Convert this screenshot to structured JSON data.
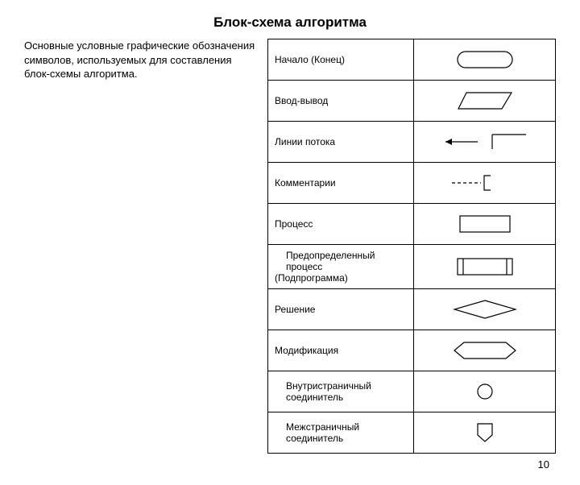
{
  "title": "Блок-схема алгоритма",
  "description": "Основные условные графические обозначения символов, используемых для составления блок-схемы алгоритма.",
  "page_number": "10",
  "stroke": "#000000",
  "bg": "#ffffff",
  "symbols": [
    {
      "label": "Начало (Конец)",
      "indent": false,
      "shape": "terminator"
    },
    {
      "label": "Ввод-вывод",
      "indent": false,
      "shape": "io"
    },
    {
      "label": "Линии потока",
      "indent": false,
      "shape": "flowlines"
    },
    {
      "label": "Комментарии",
      "indent": false,
      "shape": "comment"
    },
    {
      "label": "Процесс",
      "indent": false,
      "shape": "process"
    },
    {
      "label": "Предопределенный процесс (Подпрограмма)",
      "indent": true,
      "shape": "subprocess",
      "rawLabel": [
        "Предопределенный",
        "процесс",
        "(Подпрограмма)"
      ]
    },
    {
      "label": "Решение",
      "indent": false,
      "shape": "decision"
    },
    {
      "label": "Модификация",
      "indent": false,
      "shape": "modification"
    },
    {
      "label": "Внутристраничный соединитель",
      "indent": true,
      "shape": "onpage",
      "rawLabel": [
        "Внутристраничный",
        "соединитель"
      ]
    },
    {
      "label": "Межстраничный соединитель",
      "indent": true,
      "shape": "offpage",
      "rawLabel": [
        "Межстраничный",
        "соединитель"
      ]
    }
  ]
}
